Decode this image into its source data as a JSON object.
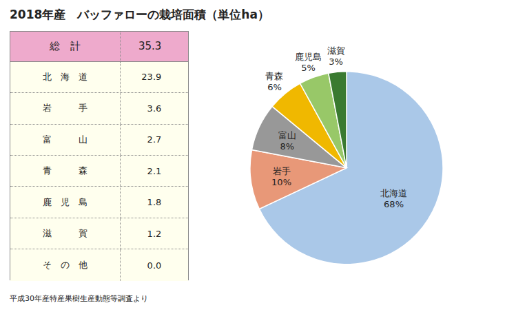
{
  "chart_data": [
    {
      "type": "table",
      "title": "2018年産　バッファローの栽培面積（単位ha）",
      "subtitle": "平成30年産特産果樹生産動態等調査より",
      "categories": [
        "総　計",
        "北　海　道",
        "岩　　　手",
        "富　　　山",
        "青　　　森",
        "鹿　児　島",
        "滋　　　賀",
        "そ　の　他"
      ],
      "values": [
        35.3,
        23.9,
        3.6,
        2.7,
        2.1,
        1.8,
        1.2,
        0.0
      ],
      "value_labels": [
        "35.3",
        "23.9",
        "3.6",
        "2.7",
        "2.1",
        "1.8",
        "1.2",
        "0.0"
      ],
      "colors": [
        "#eeaacc",
        "#ffffee",
        "#ffffee",
        "#ffffee",
        "#ffffee",
        "#ffffee",
        "#ffffee",
        "#ffffee"
      ],
      "color": "#888888"
    },
    {
      "type": "pie",
      "categories": [
        "北海道",
        "岩手",
        "富山",
        "青森",
        "鹿児島",
        "滋賀"
      ],
      "values": [
        68,
        10,
        8,
        6,
        5,
        3
      ],
      "value_labels": [
        "68%",
        "10%",
        "8%",
        "6%",
        "5%",
        "3%"
      ],
      "colors": [
        "#aac8e8",
        "#e89878",
        "#989898",
        "#f0b800",
        "#98c868",
        "#3a7a30"
      ],
      "data_labels": true
    }
  ]
}
